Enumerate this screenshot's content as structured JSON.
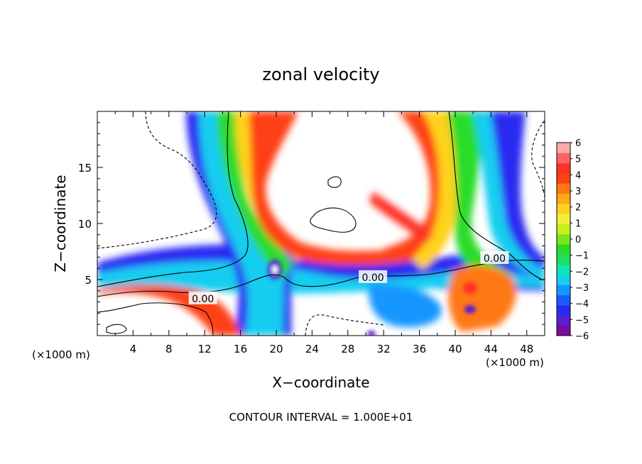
{
  "chart_data": {
    "type": "heatmap",
    "title": "zonal velocity",
    "xlabel": "X−coordinate",
    "ylabel": "Z−coordinate",
    "x_unit_left": "(×1000 m)",
    "x_unit_right": "(×1000 m)",
    "footer": "CONTOUR INTERVAL = 1.000E+01",
    "xlim": [
      0,
      50
    ],
    "ylim": [
      0,
      20
    ],
    "xticks": [
      4,
      8,
      12,
      16,
      20,
      24,
      28,
      32,
      36,
      40,
      44,
      48
    ],
    "yticks": [
      5,
      10,
      15
    ],
    "colorbar": {
      "range": [
        -6,
        6
      ],
      "labels": [
        6,
        5,
        4,
        3,
        2,
        1,
        0,
        -1,
        -2,
        -3,
        -4,
        -5,
        -6
      ],
      "colors": [
        "#7a0c9c",
        "#5a1fd0",
        "#2a2af2",
        "#1a5cff",
        "#1496ff",
        "#18cdf0",
        "#10e6b4",
        "#1ee060",
        "#2adc2a",
        "#78e61e",
        "#c8f01e",
        "#f0f03c",
        "#ffd21e",
        "#ffaa14",
        "#ff7814",
        "#ff4014",
        "#ff3228",
        "#ff6464",
        "#ffaaaa"
      ]
    },
    "contour_labels": [
      {
        "text": "0.00",
        "x": 11.8,
        "y": 3.3
      },
      {
        "text": "0.00",
        "x": 30.8,
        "y": 5.2
      },
      {
        "text": "0.00",
        "x": 44.4,
        "y": 6.9
      }
    ]
  }
}
